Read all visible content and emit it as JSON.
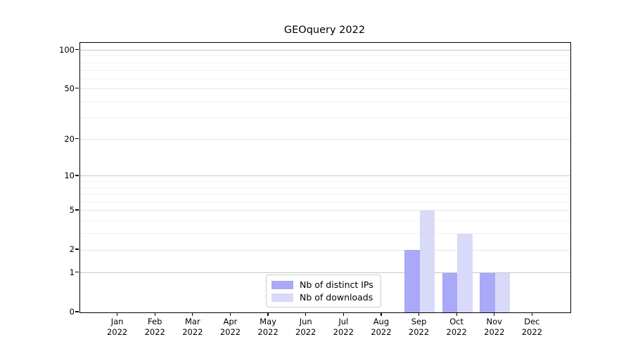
{
  "chart_data": {
    "type": "bar",
    "title": "GEOquery 2022",
    "categories": [
      "Jan",
      "Feb",
      "Mar",
      "Apr",
      "May",
      "Jun",
      "Jul",
      "Aug",
      "Sep",
      "Oct",
      "Nov",
      "Dec"
    ],
    "year_label": "2022",
    "series": [
      {
        "name": "Nb of distinct IPs",
        "color": "#a9a9f7",
        "values": [
          0,
          0,
          0,
          0,
          0,
          0,
          0,
          0,
          2,
          1,
          1,
          0
        ]
      },
      {
        "name": "Nb of downloads",
        "color": "#d9d9f9",
        "values": [
          0,
          0,
          0,
          0,
          0,
          0,
          0,
          0,
          5,
          3,
          1,
          0
        ]
      }
    ],
    "xlabel": "",
    "ylabel": "",
    "yscale": "log1p",
    "ylim": [
      0,
      114
    ],
    "yticks_labeled": [
      0,
      1,
      2,
      5,
      10,
      20,
      50,
      100
    ],
    "yticks_decade": [
      1,
      10,
      100
    ],
    "yticks_minor": [
      3,
      4,
      6,
      7,
      8,
      9,
      30,
      40,
      60,
      70,
      80,
      90
    ],
    "grid": "horizontal",
    "legend_position": "bottom-center"
  },
  "colors": {
    "background": "#ffffff",
    "axis": "#000000",
    "grid_major": "#c6c6c6",
    "grid_mid": "#e7e7e7",
    "grid_minor": "#f2f2f2",
    "legend_border": "#cccccc"
  }
}
